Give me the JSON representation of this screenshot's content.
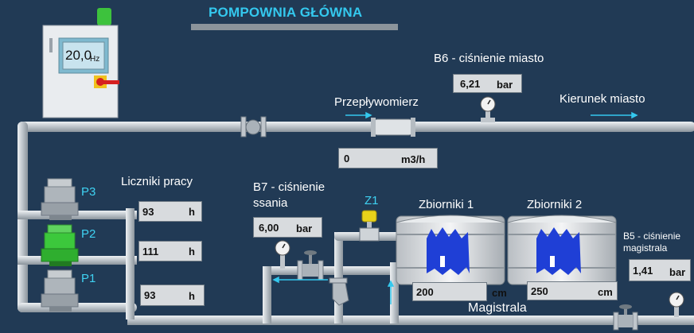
{
  "header": {
    "title": "POMPOWNIA GŁÓWNA"
  },
  "inverter": {
    "value": "20,0",
    "unit": "Hz"
  },
  "sensors": {
    "b6": {
      "label": "B6 - ciśnienie miasto",
      "value": "6,21",
      "unit": "bar"
    },
    "b7": {
      "label_line1": "B7 - ciśnienie",
      "label_line2": "ssania",
      "value": "6,00",
      "unit": "bar"
    },
    "b5": {
      "label_line1": "B5 - ciśnienie",
      "label_line2": "magistrala",
      "value": "1,41",
      "unit": "bar"
    }
  },
  "flowmeter": {
    "label": "Przepływomierz",
    "value": "0",
    "unit": "m3/h"
  },
  "direction_label": "Kierunek miasto",
  "counters": {
    "title": "Liczniki pracy",
    "p3": {
      "value": "93",
      "unit": "h"
    },
    "p2": {
      "value": "111",
      "unit": "h"
    },
    "p1": {
      "value": "93",
      "unit": "h"
    }
  },
  "pumps": [
    {
      "label": "P3",
      "state": "idle",
      "color": "#9aa0a6"
    },
    {
      "label": "P2",
      "state": "running",
      "color": "#3cc83c"
    },
    {
      "label": "P1",
      "state": "idle",
      "color": "#9aa0a6"
    }
  ],
  "valve_z1": {
    "label": "Z1",
    "color": "#e8d21a"
  },
  "tanks": {
    "t1": {
      "label": "Zbiorniki 1",
      "level": "200",
      "unit": "cm"
    },
    "t2": {
      "label": "Zbiorniki 2",
      "level": "250",
      "unit": "cm"
    }
  },
  "main_line_label": "Magistrala",
  "colors": {
    "background": "#213a55",
    "pipe": "#c9ced3",
    "accent": "#34c8ee",
    "water": "#1f3fd6"
  }
}
